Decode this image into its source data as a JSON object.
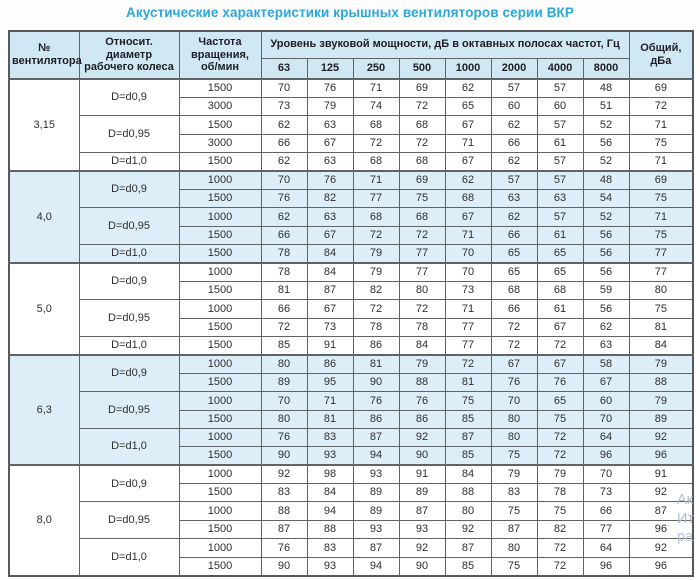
{
  "title": "Акустические характеристики крышных вентиляторов серии ВКР",
  "colors": {
    "title": "#2ba7dc",
    "header_background": "#cfe8f4",
    "shaded_section_background": "#ddeef8",
    "border": "#5f6468"
  },
  "watermark": {
    "lines": [
      "Ак",
      "Ит",
      "ра"
    ]
  },
  "table": {
    "headers": {
      "fan": "№ вентилятора",
      "diameter": "Относит. диаметр рабочего колеса",
      "speed": "Частота вращения, об/мин",
      "group": "Уровень звуковой мощности, дБ в октавных полосах частот, Гц",
      "freqs": [
        "63",
        "125",
        "250",
        "500",
        "1000",
        "2000",
        "4000",
        "8000"
      ],
      "total": "Общий, дБа"
    },
    "sections": [
      {
        "fan": "3,15",
        "shaded": false,
        "groups": [
          {
            "diameter": "D=d0,9",
            "rows": [
              {
                "speed": "1500",
                "values": [
                  70,
                  76,
                  71,
                  69,
                  62,
                  57,
                  57,
                  48
                ],
                "total": 69
              },
              {
                "speed": "3000",
                "values": [
                  73,
                  79,
                  74,
                  72,
                  65,
                  60,
                  60,
                  51
                ],
                "total": 72
              }
            ]
          },
          {
            "diameter": "D=d0,95",
            "rows": [
              {
                "speed": "1500",
                "values": [
                  62,
                  63,
                  68,
                  68,
                  67,
                  62,
                  57,
                  52
                ],
                "total": 71
              },
              {
                "speed": "3000",
                "values": [
                  66,
                  67,
                  72,
                  72,
                  71,
                  66,
                  61,
                  56
                ],
                "total": 75
              }
            ]
          },
          {
            "diameter": "D=d1,0",
            "rows": [
              {
                "speed": "1500",
                "values": [
                  62,
                  63,
                  68,
                  68,
                  67,
                  62,
                  57,
                  52
                ],
                "total": 71
              }
            ]
          }
        ]
      },
      {
        "fan": "4,0",
        "shaded": true,
        "groups": [
          {
            "diameter": "D=d0,9",
            "rows": [
              {
                "speed": "1000",
                "values": [
                  70,
                  76,
                  71,
                  69,
                  62,
                  57,
                  57,
                  48
                ],
                "total": 69
              },
              {
                "speed": "1500",
                "values": [
                  76,
                  82,
                  77,
                  75,
                  68,
                  63,
                  63,
                  54
                ],
                "total": 75
              }
            ]
          },
          {
            "diameter": "D=d0,95",
            "rows": [
              {
                "speed": "1000",
                "values": [
                  62,
                  63,
                  68,
                  68,
                  67,
                  62,
                  57,
                  52
                ],
                "total": 71
              },
              {
                "speed": "1500",
                "values": [
                  66,
                  67,
                  72,
                  72,
                  71,
                  66,
                  61,
                  56
                ],
                "total": 75
              }
            ]
          },
          {
            "diameter": "D=d1,0",
            "rows": [
              {
                "speed": "1500",
                "values": [
                  78,
                  84,
                  79,
                  77,
                  70,
                  65,
                  65,
                  56
                ],
                "total": 77
              }
            ]
          }
        ]
      },
      {
        "fan": "5,0",
        "shaded": false,
        "groups": [
          {
            "diameter": "D=d0,9",
            "rows": [
              {
                "speed": "1000",
                "values": [
                  78,
                  84,
                  79,
                  77,
                  70,
                  65,
                  65,
                  56
                ],
                "total": 77
              },
              {
                "speed": "1500",
                "values": [
                  81,
                  87,
                  82,
                  80,
                  73,
                  68,
                  68,
                  59
                ],
                "total": 80
              }
            ]
          },
          {
            "diameter": "D=d0,95",
            "rows": [
              {
                "speed": "1000",
                "values": [
                  66,
                  67,
                  72,
                  72,
                  71,
                  66,
                  61,
                  56
                ],
                "total": 75
              },
              {
                "speed": "1500",
                "values": [
                  72,
                  73,
                  78,
                  78,
                  77,
                  72,
                  67,
                  62
                ],
                "total": 81
              }
            ]
          },
          {
            "diameter": "D=d1,0",
            "rows": [
              {
                "speed": "1500",
                "values": [
                  85,
                  91,
                  86,
                  84,
                  77,
                  72,
                  72,
                  63
                ],
                "total": 84
              }
            ]
          }
        ]
      },
      {
        "fan": "6,3",
        "shaded": true,
        "groups": [
          {
            "diameter": "D=d0,9",
            "rows": [
              {
                "speed": "1000",
                "values": [
                  80,
                  86,
                  81,
                  79,
                  72,
                  67,
                  67,
                  58
                ],
                "total": 79
              },
              {
                "speed": "1500",
                "values": [
                  89,
                  95,
                  90,
                  88,
                  81,
                  76,
                  76,
                  67
                ],
                "total": 88
              }
            ]
          },
          {
            "diameter": "D=d0,95",
            "rows": [
              {
                "speed": "1000",
                "values": [
                  70,
                  71,
                  76,
                  76,
                  75,
                  70,
                  65,
                  60
                ],
                "total": 79
              },
              {
                "speed": "1500",
                "values": [
                  80,
                  81,
                  86,
                  86,
                  85,
                  80,
                  75,
                  70
                ],
                "total": 89
              }
            ]
          },
          {
            "diameter": "D=d1,0",
            "rows": [
              {
                "speed": "1000",
                "values": [
                  76,
                  83,
                  87,
                  92,
                  87,
                  80,
                  72,
                  64
                ],
                "total": 92
              },
              {
                "speed": "1500",
                "values": [
                  90,
                  93,
                  94,
                  90,
                  85,
                  75,
                  72,
                  96
                ],
                "total": 96
              }
            ]
          }
        ]
      },
      {
        "fan": "8,0",
        "shaded": false,
        "groups": [
          {
            "diameter": "D=d0,9",
            "rows": [
              {
                "speed": "1000",
                "values": [
                  92,
                  98,
                  93,
                  91,
                  84,
                  79,
                  79,
                  70
                ],
                "total": 91
              },
              {
                "speed": "1500",
                "values": [
                  83,
                  84,
                  89,
                  89,
                  88,
                  83,
                  78,
                  73
                ],
                "total": 92
              }
            ]
          },
          {
            "diameter": "D=d0,95",
            "rows": [
              {
                "speed": "1000",
                "values": [
                  88,
                  94,
                  89,
                  87,
                  80,
                  75,
                  75,
                  66
                ],
                "total": 87
              },
              {
                "speed": "1500",
                "values": [
                  87,
                  88,
                  93,
                  93,
                  92,
                  87,
                  82,
                  77
                ],
                "total": 96
              }
            ]
          },
          {
            "diameter": "D=d1,0",
            "rows": [
              {
                "speed": "1000",
                "values": [
                  76,
                  83,
                  87,
                  92,
                  87,
                  80,
                  72,
                  64
                ],
                "total": 92
              },
              {
                "speed": "1500",
                "values": [
                  90,
                  93,
                  94,
                  90,
                  85,
                  75,
                  72,
                  96
                ],
                "total": 96
              }
            ]
          }
        ]
      }
    ]
  }
}
